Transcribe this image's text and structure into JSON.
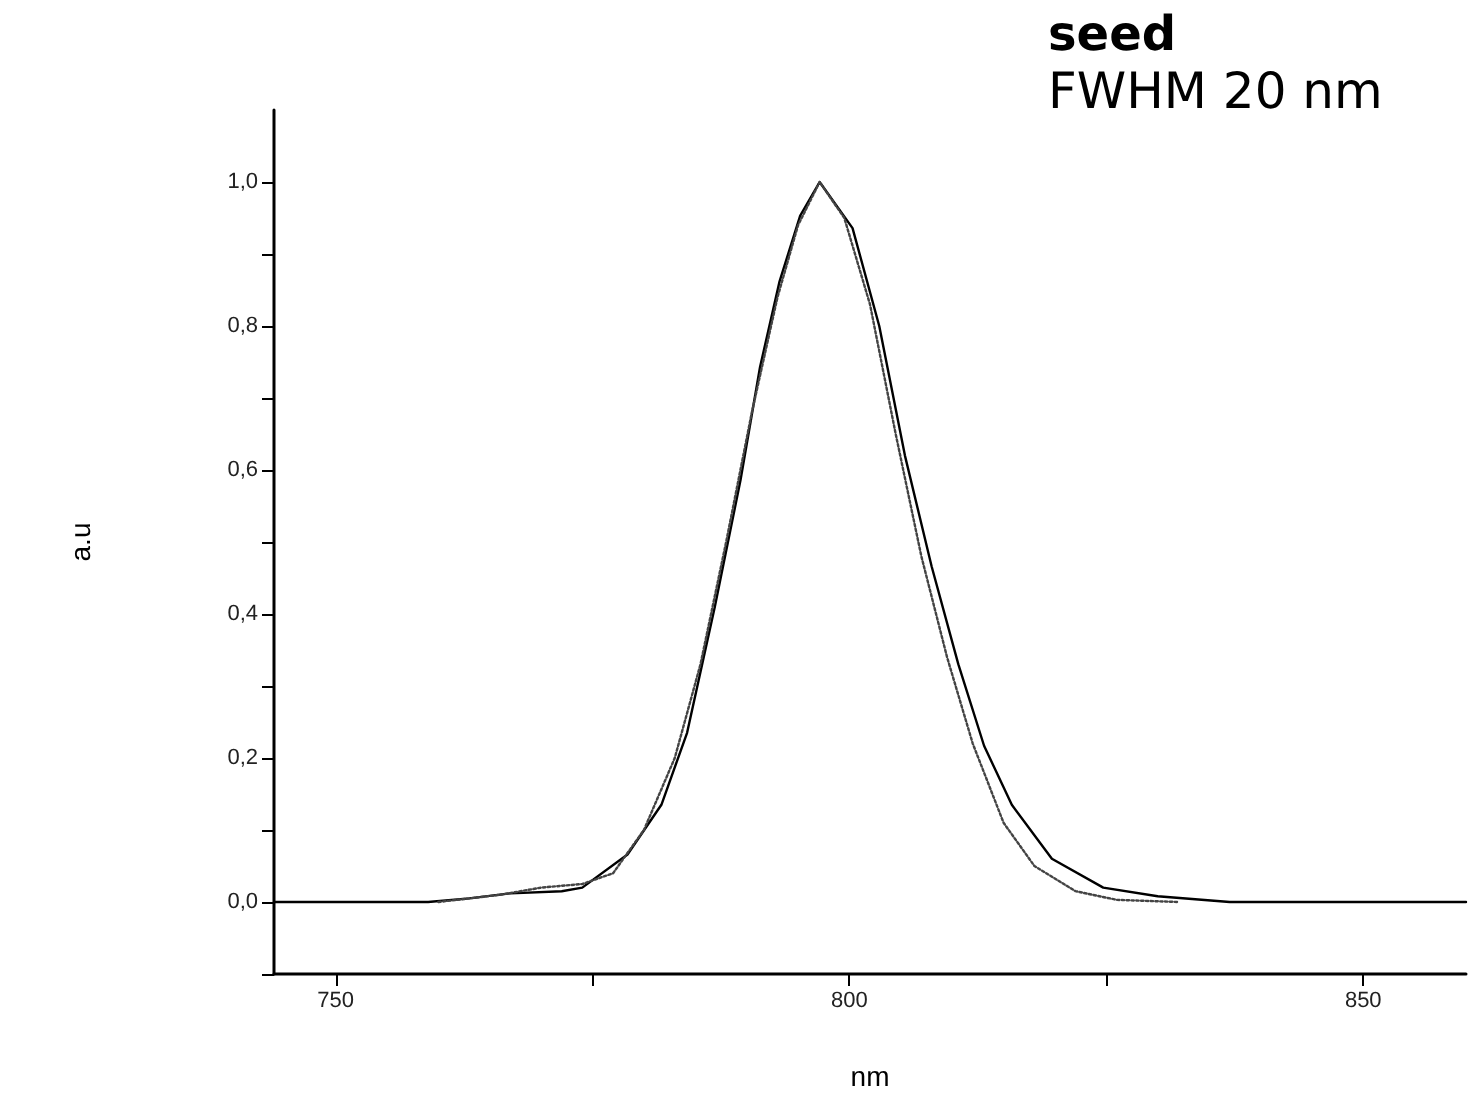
{
  "chart_data": {
    "type": "line",
    "title": "seed",
    "subtitle": "FWHM 20 nm",
    "xlabel": "nm",
    "ylabel": "a.u",
    "xlim": [
      744,
      860
    ],
    "xticks": [
      750,
      {
        "value": 775,
        "label": null
      },
      800,
      {
        "value": 825,
        "label": null
      },
      850
    ],
    "ylim": [
      -0.1,
      1.1
    ],
    "yticks": [
      {
        "value": -0.1,
        "label": null
      },
      {
        "value": 0,
        "label": "0,0"
      },
      {
        "value": 0.1,
        "label": null
      },
      {
        "value": 0.2,
        "label": "0,2"
      },
      {
        "value": 0.3,
        "label": null
      },
      {
        "value": 0.4,
        "label": "0,4"
      },
      {
        "value": 0.5,
        "label": null
      },
      {
        "value": 0.6,
        "label": "0,6"
      },
      {
        "value": 0.7,
        "label": null
      },
      {
        "value": 0.8,
        "label": "0,8"
      },
      {
        "value": 0.9,
        "label": null
      },
      {
        "value": 1.0,
        "label": "1,0"
      }
    ],
    "grid": false,
    "marker": "none",
    "series": [
      {
        "color": "#000000",
        "line_style": "solid",
        "x": [
          744,
          759,
          763,
          767,
          772,
          774,
          778.4,
          781.7,
          784.2,
          786.9,
          789.4,
          791.3,
          793.2,
          795.2,
          797.1,
          800.3,
          802.9,
          805.4,
          808,
          810.6,
          813.1,
          815.8,
          819.7,
          824.7,
          830,
          837,
          860
        ],
        "values": [
          0,
          0,
          0.005,
          0.012,
          0.015,
          0.02,
          0.066,
          0.135,
          0.235,
          0.41,
          0.586,
          0.743,
          0.862,
          0.953,
          1.0,
          0.936,
          0.8,
          0.62,
          0.466,
          0.33,
          0.217,
          0.135,
          0.06,
          0.02,
          0.008,
          0,
          0
        ]
      },
      {
        "color": "#444444",
        "line_style": "dotted",
        "x": [
          760,
          766,
          770,
          774,
          777,
          780,
          783,
          785.5,
          788,
          790.5,
          793,
          795,
          797.1,
          799.5,
          802,
          804.5,
          807,
          809.5,
          812,
          815,
          818,
          822,
          826,
          832
        ],
        "values": [
          0,
          0.01,
          0.02,
          0.025,
          0.04,
          0.1,
          0.2,
          0.33,
          0.5,
          0.68,
          0.84,
          0.94,
          1.0,
          0.95,
          0.83,
          0.65,
          0.48,
          0.34,
          0.22,
          0.11,
          0.05,
          0.015,
          0.003,
          0
        ]
      }
    ]
  }
}
